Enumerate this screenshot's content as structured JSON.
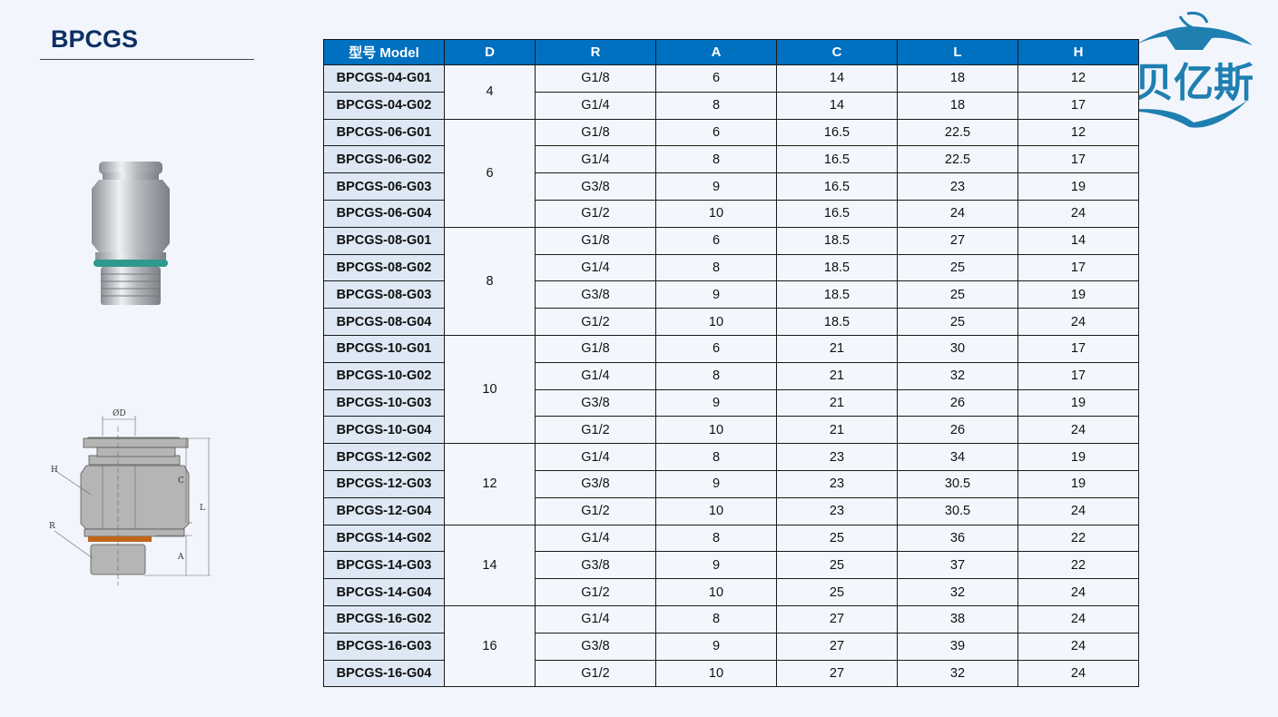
{
  "title": "BPCGS",
  "logo": {
    "text": "贝亿斯",
    "color": "#1f7fb0"
  },
  "colors": {
    "header_bg": "#0070c0",
    "model_bg": "#dde8f4",
    "title": "#0d2f63"
  },
  "diagram_labels": {
    "d": "ØD",
    "h": "H",
    "r": "R",
    "c": "C",
    "l": "L",
    "a": "A"
  },
  "table": {
    "headers": [
      "型号 Model",
      "D",
      "R",
      "A",
      "C",
      "L",
      "H"
    ],
    "groups": [
      {
        "d": "4",
        "rows": [
          [
            "BPCGS-04-G01",
            "G1/8",
            "6",
            "14",
            "18",
            "12"
          ],
          [
            "BPCGS-04-G02",
            "G1/4",
            "8",
            "14",
            "18",
            "17"
          ]
        ]
      },
      {
        "d": "6",
        "rows": [
          [
            "BPCGS-06-G01",
            "G1/8",
            "6",
            "16.5",
            "22.5",
            "12"
          ],
          [
            "BPCGS-06-G02",
            "G1/4",
            "8",
            "16.5",
            "22.5",
            "17"
          ],
          [
            "BPCGS-06-G03",
            "G3/8",
            "9",
            "16.5",
            "23",
            "19"
          ],
          [
            "BPCGS-06-G04",
            "G1/2",
            "10",
            "16.5",
            "24",
            "24"
          ]
        ]
      },
      {
        "d": "8",
        "rows": [
          [
            "BPCGS-08-G01",
            "G1/8",
            "6",
            "18.5",
            "27",
            "14"
          ],
          [
            "BPCGS-08-G02",
            "G1/4",
            "8",
            "18.5",
            "25",
            "17"
          ],
          [
            "BPCGS-08-G03",
            "G3/8",
            "9",
            "18.5",
            "25",
            "19"
          ],
          [
            "BPCGS-08-G04",
            "G1/2",
            "10",
            "18.5",
            "25",
            "24"
          ]
        ]
      },
      {
        "d": "10",
        "rows": [
          [
            "BPCGS-10-G01",
            "G1/8",
            "6",
            "21",
            "30",
            "17"
          ],
          [
            "BPCGS-10-G02",
            "G1/4",
            "8",
            "21",
            "32",
            "17"
          ],
          [
            "BPCGS-10-G03",
            "G3/8",
            "9",
            "21",
            "26",
            "19"
          ],
          [
            "BPCGS-10-G04",
            "G1/2",
            "10",
            "21",
            "26",
            "24"
          ]
        ]
      },
      {
        "d": "12",
        "rows": [
          [
            "BPCGS-12-G02",
            "G1/4",
            "8",
            "23",
            "34",
            "19"
          ],
          [
            "BPCGS-12-G03",
            "G3/8",
            "9",
            "23",
            "30.5",
            "19"
          ],
          [
            "BPCGS-12-G04",
            "G1/2",
            "10",
            "23",
            "30.5",
            "24"
          ]
        ]
      },
      {
        "d": "14",
        "rows": [
          [
            "BPCGS-14-G02",
            "G1/4",
            "8",
            "25",
            "36",
            "22"
          ],
          [
            "BPCGS-14-G03",
            "G3/8",
            "9",
            "25",
            "37",
            "22"
          ],
          [
            "BPCGS-14-G04",
            "G1/2",
            "10",
            "25",
            "32",
            "24"
          ]
        ]
      },
      {
        "d": "16",
        "rows": [
          [
            "BPCGS-16-G02",
            "G1/4",
            "8",
            "27",
            "38",
            "24"
          ],
          [
            "BPCGS-16-G03",
            "G3/8",
            "9",
            "27",
            "39",
            "24"
          ],
          [
            "BPCGS-16-G04",
            "G1/2",
            "10",
            "27",
            "32",
            "24"
          ]
        ]
      }
    ]
  }
}
